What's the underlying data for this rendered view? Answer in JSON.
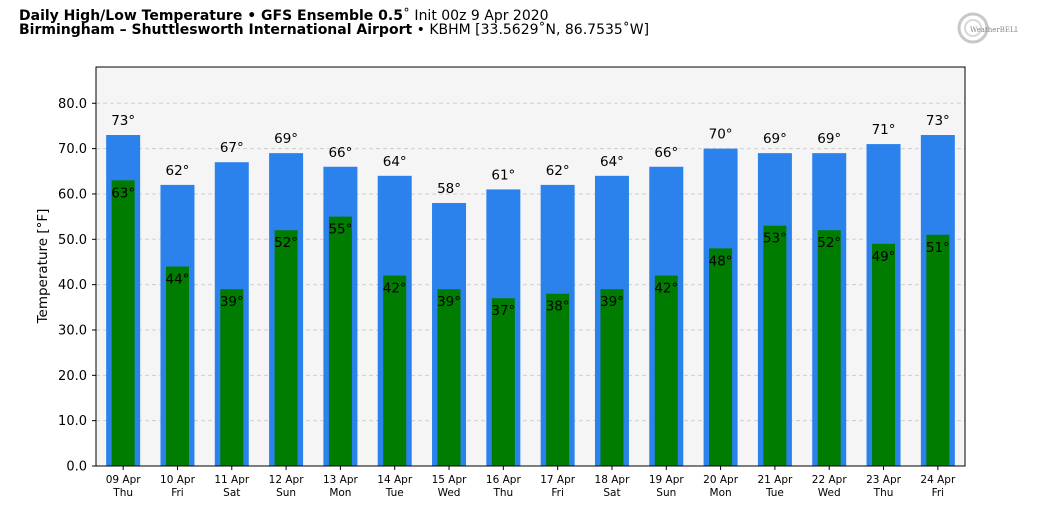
{
  "header": {
    "title_bold": "Daily High/Low Temperature • GFS Ensemble 0.5",
    "title_rest": "˚ Init 00z 9 Apr 2020",
    "location_bold": "Birmingham – Shuttlesworth International Airport",
    "location_rest": " • KBHM [33.5629˚N, 86.7535˚W]",
    "logo_text": "WeatherBELL",
    "logo_icon": "swirl-logo-icon"
  },
  "chart_data": {
    "type": "bar",
    "ylabel": "Temperature [°F]",
    "xlabel": "",
    "ylim": [
      0,
      88
    ],
    "yticks": [
      "0.0",
      "10.0",
      "20.0",
      "30.0",
      "40.0",
      "50.0",
      "60.0",
      "70.0",
      "80.0"
    ],
    "grid": true,
    "categories": [
      [
        "09 Apr",
        "Thu"
      ],
      [
        "10 Apr",
        "Fri"
      ],
      [
        "11 Apr",
        "Sat"
      ],
      [
        "12 Apr",
        "Sun"
      ],
      [
        "13 Apr",
        "Mon"
      ],
      [
        "14 Apr",
        "Tue"
      ],
      [
        "15 Apr",
        "Wed"
      ],
      [
        "16 Apr",
        "Thu"
      ],
      [
        "17 Apr",
        "Fri"
      ],
      [
        "18 Apr",
        "Sat"
      ],
      [
        "19 Apr",
        "Sun"
      ],
      [
        "20 Apr",
        "Mon"
      ],
      [
        "21 Apr",
        "Tue"
      ],
      [
        "22 Apr",
        "Wed"
      ],
      [
        "23 Apr",
        "Thu"
      ],
      [
        "24 Apr",
        "Fri"
      ]
    ],
    "series": [
      {
        "name": "",
        "color": "#2b82ec",
        "values": [
          73,
          62,
          67,
          69,
          66,
          64,
          58,
          61,
          62,
          64,
          66,
          70,
          69,
          69,
          71,
          73
        ]
      },
      {
        "name": "",
        "color": "#007c00",
        "values": [
          63,
          44,
          39,
          52,
          55,
          42,
          39,
          37,
          38,
          39,
          42,
          48,
          53,
          52,
          49,
          51
        ]
      }
    ],
    "label_suffix": "°"
  }
}
